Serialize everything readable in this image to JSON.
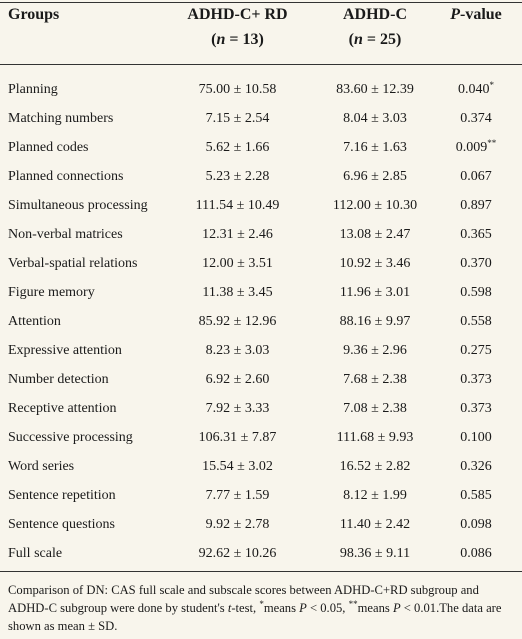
{
  "header": {
    "groups": "Groups",
    "col2": {
      "line1": "ADHD-C+ RD",
      "line2": [
        {
          "text": "(",
          "style": "normal"
        },
        {
          "text": "n",
          "style": "italic"
        },
        {
          "text": " = 13)",
          "style": "normal"
        }
      ]
    },
    "col3": {
      "line1": "ADHD-C",
      "line2": [
        {
          "text": "(",
          "style": "normal"
        },
        {
          "text": "n",
          "style": "italic"
        },
        {
          "text": " = 25)",
          "style": "normal"
        }
      ]
    },
    "col4": [
      {
        "text": "P",
        "style": "italic"
      },
      {
        "text": "-value",
        "style": "normal"
      }
    ]
  },
  "table": {
    "rows": [
      [
        "Planning",
        "75.00 ± 10.58",
        "83.60 ± 12.39",
        "0.040",
        "*"
      ],
      [
        "Matching numbers",
        "7.15 ± 2.54",
        "8.04 ± 3.03",
        "0.374"
      ],
      [
        "Planned codes",
        "5.62 ± 1.66",
        "7.16 ± 1.63",
        "0.009",
        "**"
      ],
      [
        "Planned connections",
        "5.23 ± 2.28",
        "6.96 ± 2.85",
        "0.067"
      ],
      [
        "Simultaneous processing",
        "111.54 ± 10.49",
        "112.00 ± 10.30",
        "0.897"
      ],
      [
        "Non-verbal matrices",
        "12.31 ± 2.46",
        "13.08 ± 2.47",
        "0.365"
      ],
      [
        "Verbal-spatial relations",
        "12.00 ± 3.51",
        "10.92 ± 3.46",
        "0.370"
      ],
      [
        "Figure memory",
        "11.38 ± 3.45",
        "11.96 ± 3.01",
        "0.598"
      ],
      [
        "Attention",
        "85.92 ± 12.96",
        "88.16 ± 9.97",
        "0.558"
      ],
      [
        "Expressive attention",
        "8.23 ± 3.03",
        "9.36 ± 2.96",
        "0.275"
      ],
      [
        "Number detection",
        "6.92 ± 2.60",
        "7.68 ± 2.38",
        "0.373"
      ],
      [
        "Receptive attention",
        "7.92 ± 3.33",
        "7.08 ± 2.38",
        "0.373"
      ],
      [
        "Successive processing",
        "106.31 ± 7.87",
        "111.68 ± 9.93",
        "0.100"
      ],
      [
        "Word series",
        "15.54 ± 3.02",
        "16.52 ± 2.82",
        "0.326"
      ],
      [
        "Sentence repetition",
        "7.77 ± 1.59",
        "8.12 ± 1.99",
        "0.585"
      ],
      [
        "Sentence questions",
        "9.92 ± 2.78",
        "11.40 ± 2.42",
        "0.098"
      ],
      [
        "Full scale",
        "92.62 ± 10.26",
        "98.36 ± 9.11",
        "0.086"
      ]
    ]
  },
  "footnote": [
    {
      "text": "Comparison of DN: CAS full scale and subscale scores between ADHD-C+RD subgroup and ADHD-C subgroup were done by student's ",
      "style": "normal"
    },
    {
      "text": "t",
      "style": "italic"
    },
    {
      "text": "-test, ",
      "style": "normal"
    },
    {
      "text": "*",
      "style": "sup"
    },
    {
      "text": "means ",
      "style": "normal"
    },
    {
      "text": "P",
      "style": "italic"
    },
    {
      "text": " < 0.05, ",
      "style": "normal"
    },
    {
      "text": "**",
      "style": "sup"
    },
    {
      "text": "means ",
      "style": "normal"
    },
    {
      "text": "P",
      "style": "italic"
    },
    {
      "text": " < 0.01.The data are shown as mean ± SD.",
      "style": "normal"
    }
  ]
}
